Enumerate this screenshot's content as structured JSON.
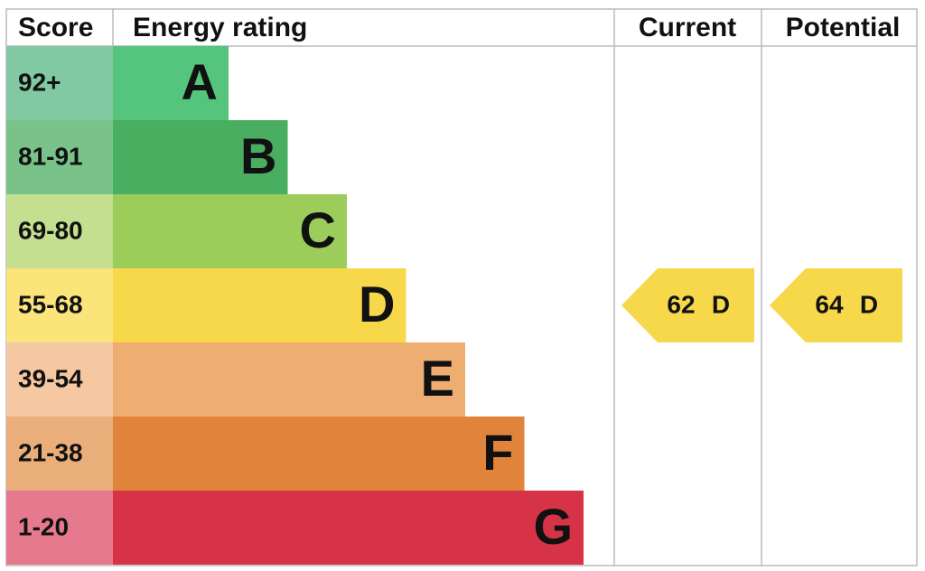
{
  "header": {
    "score": "Score",
    "rating": "Energy rating",
    "current": "Current",
    "potential": "Potential"
  },
  "bands": [
    {
      "score": "92+",
      "letter": "A",
      "score_color": "#80c9a3",
      "color": "#55c57d"
    },
    {
      "score": "81-91",
      "letter": "B",
      "score_color": "#79c38b",
      "color": "#4aae61"
    },
    {
      "score": "69-80",
      "letter": "C",
      "score_color": "#c3df8f",
      "color": "#9ccd5a"
    },
    {
      "score": "55-68",
      "letter": "D",
      "score_color": "#fbe57a",
      "color": "#f6d84a"
    },
    {
      "score": "39-54",
      "letter": "E",
      "score_color": "#f5c8a2",
      "color": "#efae71"
    },
    {
      "score": "21-38",
      "letter": "F",
      "score_color": "#eaae7a",
      "color": "#e0843b"
    },
    {
      "score": "1-20",
      "letter": "G",
      "score_color": "#e57a8e",
      "color": "#d73346"
    }
  ],
  "current": {
    "value": 62,
    "letter": "D"
  },
  "potential": {
    "value": 64,
    "letter": "D"
  }
}
